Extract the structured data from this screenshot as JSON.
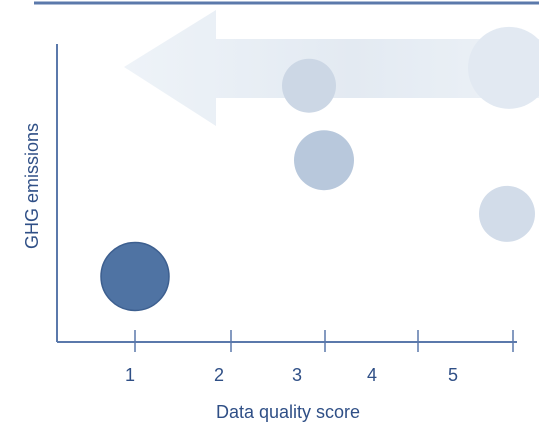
{
  "chart_data": {
    "type": "scatter",
    "xlabel": "Data quality score",
    "ylabel": "GHG emissions",
    "x_ticks": [
      "1",
      "2",
      "3",
      "4",
      "5"
    ],
    "arrow_direction": "left",
    "colors": {
      "axis": "#5b79ab",
      "top_rule": "#5b79ab",
      "text": "#2f4f86",
      "arrow": "#e4ebf3"
    },
    "points": [
      {
        "x": 1.0,
        "level": 0.22,
        "color": "#4f73a3"
      },
      {
        "x": 2.9,
        "level": 0.86,
        "color": "#ccd7e5"
      },
      {
        "x": 3.0,
        "level": 0.61,
        "color": "#b8c8dc"
      },
      {
        "x": 5.0,
        "level": 0.92,
        "color": "#e2e9f2"
      },
      {
        "x": 5.0,
        "level": 0.43,
        "color": "#d2dce9"
      }
    ]
  }
}
